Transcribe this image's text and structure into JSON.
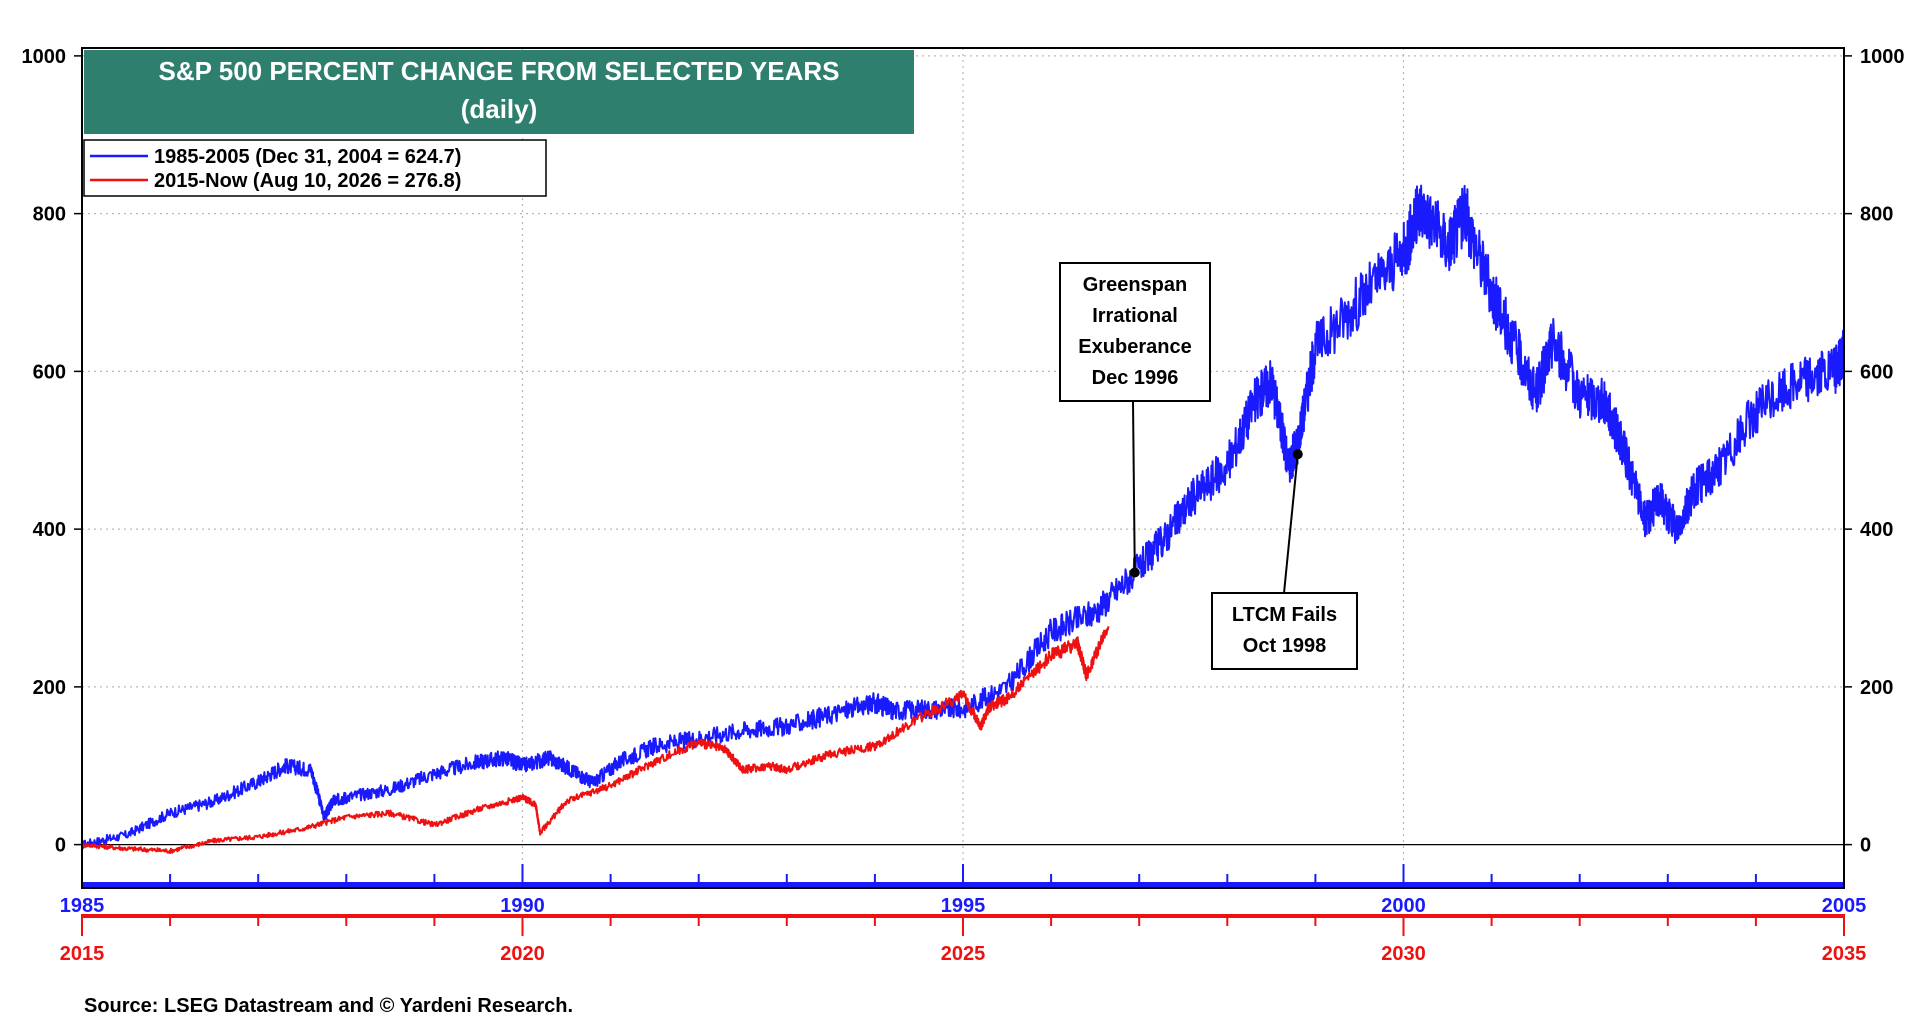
{
  "chart_data": {
    "type": "line",
    "title": "S&P 500 PERCENT CHANGE FROM SELECTED YEARS",
    "subtitle": "(daily)",
    "ylim": [
      -55,
      1010
    ],
    "y_ticks": [
      0,
      200,
      400,
      600,
      800,
      1000
    ],
    "y_tick_labels": [
      "0",
      "200",
      "400",
      "600",
      "800",
      "1000"
    ],
    "x_range": [
      1985.0,
      2005.0
    ],
    "x_ticks_blue": [
      1985,
      1990,
      1995,
      2000,
      2005
    ],
    "x_tick_labels_blue": [
      "1985",
      "1990",
      "1995",
      "2000",
      "2005"
    ],
    "x_tick_labels_red": [
      "2015",
      "2020",
      "2025",
      "2030",
      "2035"
    ],
    "grid": true,
    "legend_placement": "top-left",
    "series": [
      {
        "name": "1985-2005 (Dec 31, 2004 = 624.7)",
        "color": "#1a1aff",
        "x": [
          1985.0,
          1985.5,
          1986.0,
          1986.5,
          1987.0,
          1987.3,
          1987.6,
          1987.75,
          1987.85,
          1988.0,
          1988.5,
          1989.0,
          1989.5,
          1989.8,
          1990.0,
          1990.3,
          1990.55,
          1990.8,
          1991.1,
          1991.5,
          1992.0,
          1992.5,
          1993.0,
          1993.5,
          1994.0,
          1994.2,
          1994.6,
          1995.0,
          1995.5,
          1996.0,
          1996.5,
          1996.95,
          1997.3,
          1997.6,
          1998.0,
          1998.3,
          1998.5,
          1998.7,
          1998.8,
          1999.0,
          1999.5,
          2000.0,
          2000.2,
          2000.5,
          2000.7,
          2001.0,
          2001.2,
          2001.5,
          2001.7,
          2002.0,
          2002.3,
          2002.5,
          2002.75,
          2002.9,
          2003.1,
          2003.3,
          2003.6,
          2004.0,
          2004.5,
          2004.9,
          2005.0
        ],
        "y": [
          0,
          12,
          40,
          55,
          80,
          100,
          95,
          35,
          55,
          60,
          70,
          90,
          105,
          110,
          100,
          110,
          95,
          78,
          105,
          125,
          135,
          145,
          150,
          165,
          180,
          170,
          172,
          172,
          200,
          270,
          295,
          345,
          390,
          440,
          480,
          560,
          590,
          480,
          510,
          630,
          690,
          750,
          810,
          760,
          800,
          700,
          650,
          570,
          640,
          570,
          560,
          500,
          410,
          440,
          400,
          450,
          480,
          550,
          590,
          600,
          624.7
        ]
      },
      {
        "name": "2015-Now (Aug 10, 2026 = 276.8)",
        "color": "#ee1111",
        "x": [
          1985.0,
          1985.5,
          1986.0,
          1986.5,
          1987.0,
          1987.5,
          1988.0,
          1988.5,
          1989.0,
          1989.5,
          1990.0,
          1990.15,
          1990.2,
          1990.5,
          1991.0,
          1991.5,
          1992.0,
          1992.3,
          1992.5,
          1992.8,
          1993.0,
          1993.5,
          1994.0,
          1994.5,
          1995.0,
          1995.2,
          1995.3,
          1995.5,
          1996.0,
          1996.3,
          1996.4,
          1996.65
        ],
        "y": [
          0,
          -5,
          -8,
          5,
          10,
          20,
          35,
          40,
          25,
          45,
          60,
          50,
          15,
          55,
          75,
          105,
          130,
          120,
          95,
          100,
          95,
          115,
          125,
          160,
          190,
          150,
          175,
          185,
          240,
          255,
          215,
          276.8
        ]
      }
    ],
    "annotations": [
      {
        "lines": [
          "Greenspan",
          "Irrational",
          "Exuberance",
          "Dec 1996"
        ],
        "x": 1996.95,
        "y": 345
      },
      {
        "lines": [
          "LTCM Fails",
          "Oct 1998"
        ],
        "x": 1998.8,
        "y": 495
      }
    ],
    "source": "Source: LSEG Datastream and © Yardeni Research."
  }
}
